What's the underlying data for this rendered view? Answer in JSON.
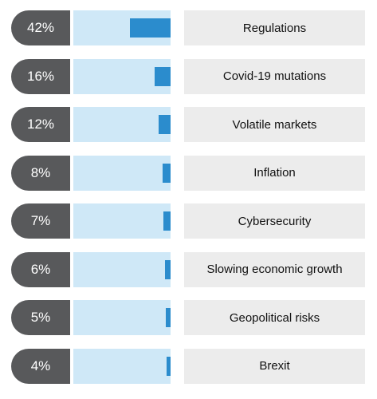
{
  "chart_data": {
    "type": "bar",
    "orientation": "horizontal",
    "categories": [
      "Regulations",
      "Covid-19 mutations",
      "Volatile markets",
      "Inflation",
      "Cybersecurity",
      "Slowing economic growth",
      "Geopolitical risks",
      "Brexit"
    ],
    "values": [
      42,
      16,
      12,
      8,
      7,
      6,
      5,
      4
    ],
    "value_labels": [
      "42%",
      "16%",
      "12%",
      "8%",
      "7%",
      "6%",
      "5%",
      "4%"
    ],
    "xlim": [
      0,
      100
    ]
  },
  "colors": {
    "pill": "#58595b",
    "track": "#cfe8f7",
    "bar": "#2b8ccd",
    "label_bg": "#ececec"
  }
}
